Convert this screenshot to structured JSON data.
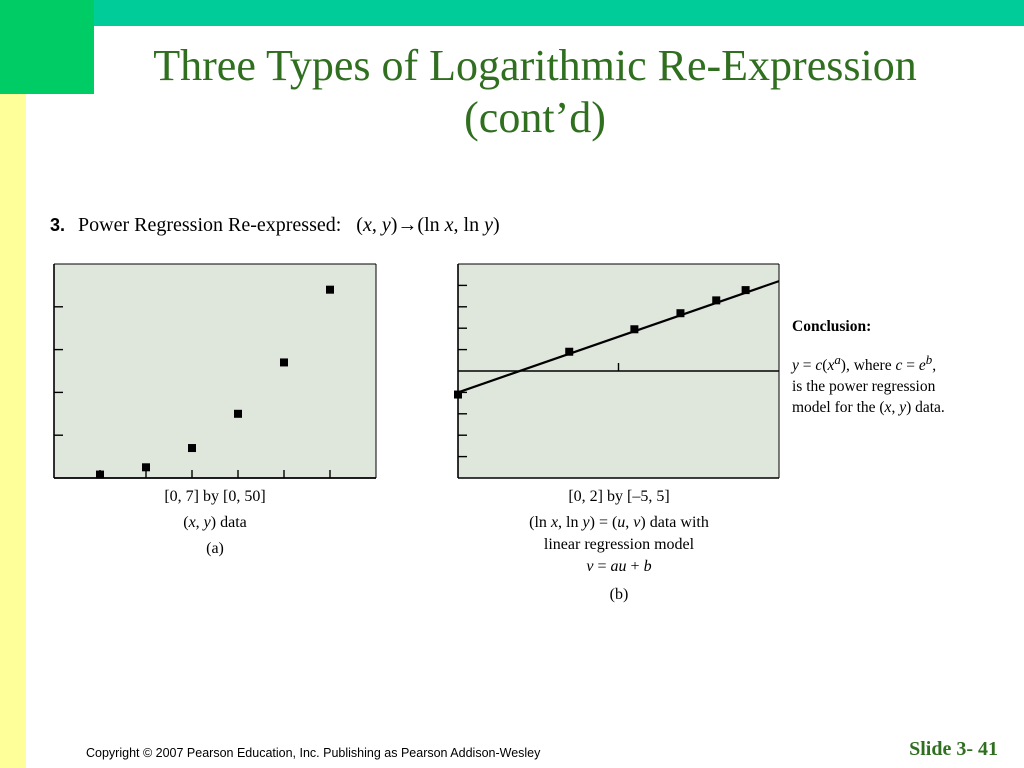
{
  "slide": {
    "title_line1": "Three Types of Logarithmic Re-Expression",
    "title_line2": "(cont’d)",
    "item_number": "3.",
    "item_text": "Power Regression Re-expressed:",
    "item_expr_parts": [
      "(",
      "x",
      ", ",
      "y",
      ")→(ln ",
      "x",
      ", ln ",
      "y",
      ")"
    ],
    "copyright": "Copyright © 2007 Pearson Education, Inc. Publishing as Pearson Addison-Wesley",
    "slide_number": "Slide 3- 41",
    "colors": {
      "title": "#2f6f1f",
      "plot_bg": "#dfe6dc",
      "left_strip": "#ffff99",
      "top_band": "#00cc99",
      "corner": "#00cc66"
    }
  },
  "panel_a": {
    "window": "[0, 7] by [0, 50]",
    "line2_parts": [
      "(",
      "x",
      ", ",
      "y",
      ") data"
    ],
    "label": "(a)"
  },
  "panel_b": {
    "window": "[0, 2] by [–5, 5]",
    "line1_parts": [
      "(ln ",
      "x",
      ", ln ",
      "y",
      ") = (",
      "u",
      ", ",
      "v",
      ") data with"
    ],
    "line2": "linear regression model",
    "line3_parts": [
      "v",
      " = ",
      "au",
      " + ",
      "b"
    ],
    "label": "(b)"
  },
  "conclusion": {
    "heading": "Conclusion:",
    "line1_parts": [
      "y",
      " = ",
      "c",
      "(",
      "x",
      "a",
      "), where ",
      "c",
      " = ",
      "e",
      "b",
      ","
    ],
    "line2": "is the power regression",
    "line3_parts": [
      "model for the (",
      "x",
      ", ",
      "y",
      ") data."
    ]
  },
  "chart_data": [
    {
      "type": "scatter",
      "title": "",
      "xlabel": "",
      "ylabel": "",
      "xlim": [
        0,
        7
      ],
      "ylim": [
        0,
        50
      ],
      "x_tick_step": 1,
      "y_tick_step": 10,
      "grid": false,
      "points": [
        {
          "x": 1,
          "y": 0.8
        },
        {
          "x": 2,
          "y": 2.5
        },
        {
          "x": 3,
          "y": 7
        },
        {
          "x": 4,
          "y": 15
        },
        {
          "x": 5,
          "y": 27
        },
        {
          "x": 6,
          "y": 44
        }
      ]
    },
    {
      "type": "scatter",
      "title": "",
      "xlabel": "",
      "ylabel": "",
      "xlim": [
        0,
        2
      ],
      "ylim": [
        -5,
        5
      ],
      "x_tick_step": 1,
      "y_tick_step": 1,
      "grid": false,
      "points": [
        {
          "x": 0,
          "y": -1.1
        },
        {
          "x": 0.693,
          "y": 0.9
        },
        {
          "x": 1.099,
          "y": 1.95
        },
        {
          "x": 1.386,
          "y": 2.7
        },
        {
          "x": 1.609,
          "y": 3.3
        },
        {
          "x": 1.792,
          "y": 3.78
        }
      ],
      "regression_line": {
        "slope": 2.6,
        "intercept": -1.0
      }
    }
  ]
}
